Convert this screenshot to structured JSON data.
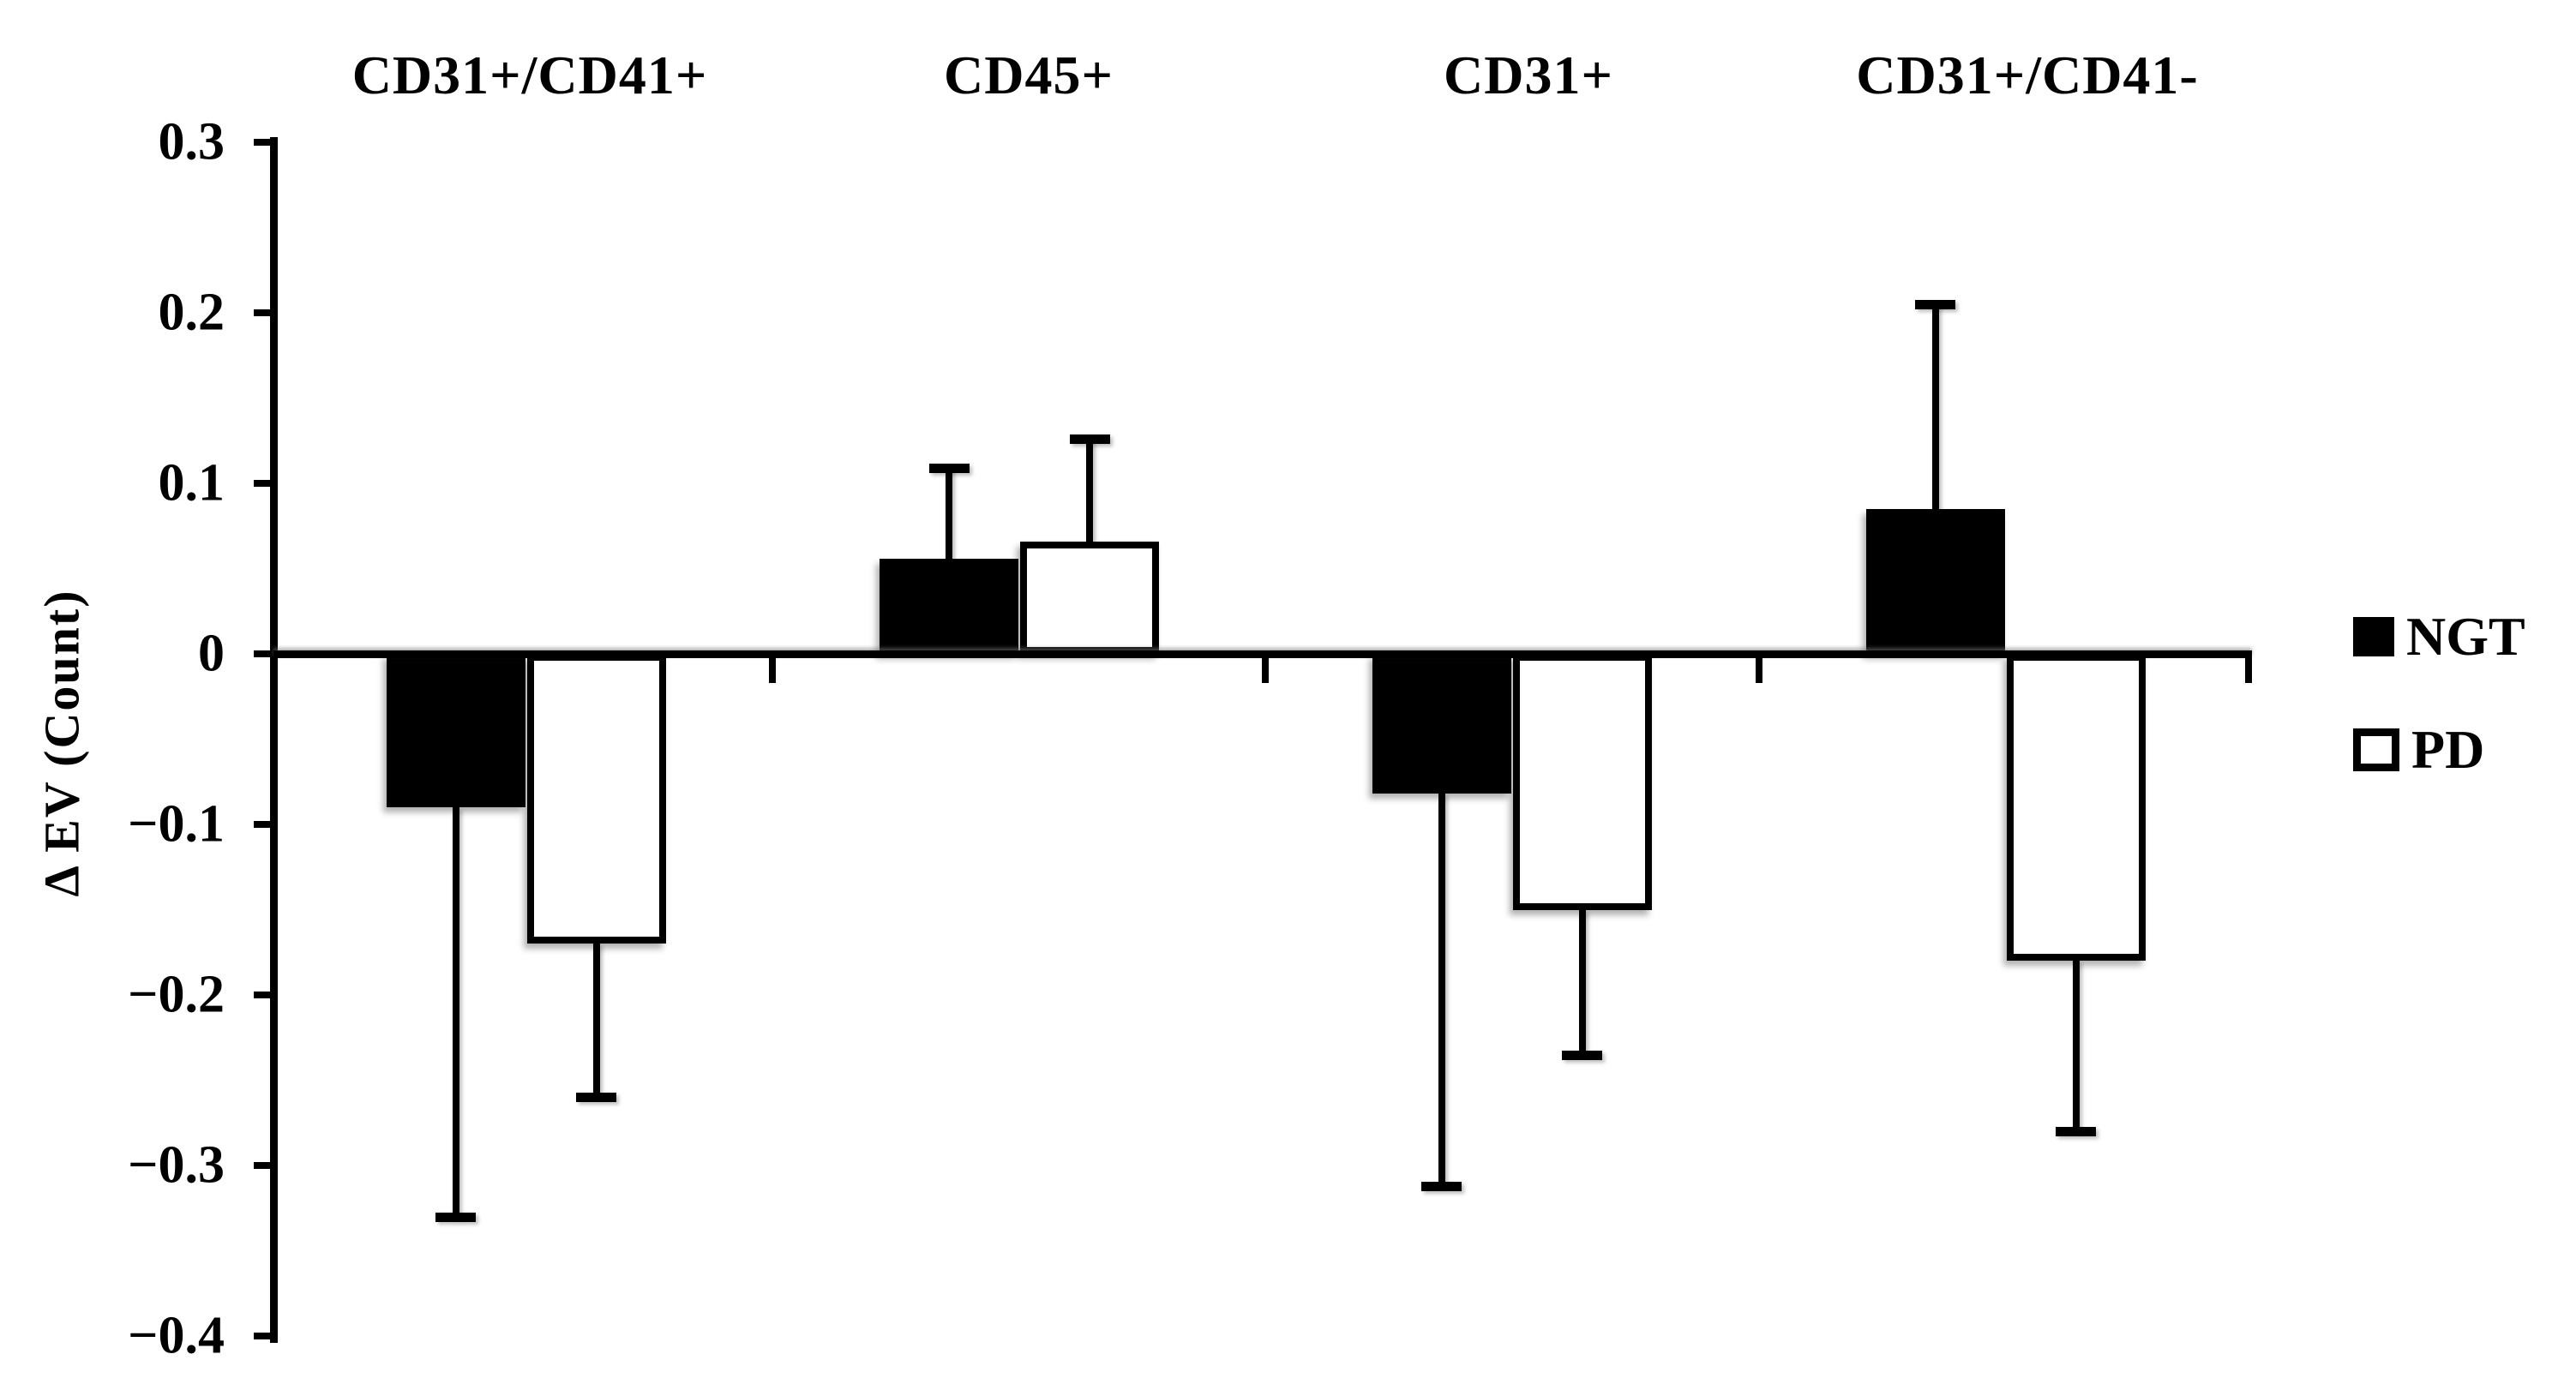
{
  "figure": {
    "background": "#ffffff",
    "bar_fill_color": "#000000",
    "bar_hollow_color": "#ffffff",
    "axis_color": "#000000"
  },
  "legend": {
    "entries": [
      {
        "label": "NGT",
        "swatch": "filled-black-square-icon"
      },
      {
        "label": "PD",
        "swatch": "hollow-white-square-icon"
      }
    ]
  },
  "chart_data": {
    "type": "bar",
    "title": "",
    "xlabel": "",
    "ylabel": "Δ EV (Count)",
    "categories": [
      "CD31+/CD41+",
      "CD45+",
      "CD31+",
      "CD31+/CD41-"
    ],
    "series": [
      {
        "name": "NGT",
        "fill": "#000000",
        "style": "filled",
        "values": [
          -0.09,
          0.056,
          -0.082,
          0.085
        ],
        "errors": [
          0.24,
          0.053,
          0.23,
          0.12
        ],
        "error_caps_at": [
          -0.33,
          0.109,
          -0.312,
          0.205
        ]
      },
      {
        "name": "PD",
        "fill": "#ffffff",
        "style": "hollow",
        "values": [
          -0.17,
          0.066,
          -0.15,
          -0.18
        ],
        "errors": [
          0.09,
          0.06,
          0.085,
          0.1
        ],
        "error_caps_at": [
          -0.26,
          0.126,
          -0.235,
          -0.28
        ]
      }
    ],
    "ylim": [
      -0.4,
      0.3
    ],
    "yticks": [
      0.3,
      0.2,
      0.1,
      0,
      -0.1,
      -0.2,
      -0.3,
      -0.4
    ],
    "ytick_labels": [
      "0.3",
      "0.2",
      "0.1",
      "0",
      "−0.1",
      "−0.2",
      "−0.3",
      "−0.4"
    ],
    "grid": false,
    "error_bars": "one-sided, pointing away from zero",
    "legend_position": "right-middle"
  }
}
